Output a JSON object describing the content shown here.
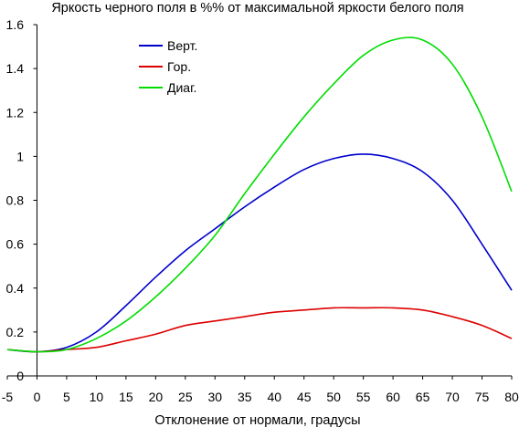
{
  "chart_data": {
    "type": "line",
    "title": "Яркость черного поля в %% от максимальной яркости белого поля",
    "xlabel": "Отклонение от нормали, градусы",
    "ylabel": "",
    "xlim": [
      -5,
      80
    ],
    "ylim": [
      0,
      1.6
    ],
    "xticks": [
      "-5",
      "0",
      "5",
      "10",
      "15",
      "20",
      "25",
      "30",
      "35",
      "40",
      "45",
      "50",
      "55",
      "60",
      "65",
      "70",
      "75",
      "80"
    ],
    "yticks": [
      "0",
      "0.2",
      "0.4",
      "0.6",
      "0.8",
      "1",
      "1.2",
      "1.4",
      "1.6"
    ],
    "grid": false,
    "legend_position": "top-left",
    "series": [
      {
        "name": "Верт.",
        "color": "#0000cc",
        "x": [
          -5,
          0,
          5,
          10,
          15,
          20,
          25,
          30,
          35,
          40,
          45,
          50,
          55,
          60,
          65,
          70,
          75,
          80
        ],
        "y": [
          0.12,
          0.11,
          0.13,
          0.2,
          0.32,
          0.45,
          0.57,
          0.67,
          0.77,
          0.86,
          0.94,
          0.99,
          1.01,
          0.99,
          0.93,
          0.8,
          0.6,
          0.39
        ]
      },
      {
        "name": "Гор.",
        "color": "#dd0000",
        "x": [
          -5,
          0,
          5,
          10,
          15,
          20,
          25,
          30,
          35,
          40,
          45,
          50,
          55,
          60,
          65,
          70,
          75,
          80
        ],
        "y": [
          0.12,
          0.11,
          0.12,
          0.13,
          0.16,
          0.19,
          0.23,
          0.25,
          0.27,
          0.29,
          0.3,
          0.31,
          0.31,
          0.31,
          0.3,
          0.27,
          0.23,
          0.17
        ]
      },
      {
        "name": "Диаг.",
        "color": "#00dd00",
        "x": [
          -5,
          0,
          5,
          10,
          15,
          20,
          25,
          30,
          35,
          40,
          45,
          50,
          55,
          60,
          65,
          70,
          75,
          80
        ],
        "y": [
          0.12,
          0.11,
          0.12,
          0.17,
          0.25,
          0.36,
          0.49,
          0.64,
          0.83,
          1.01,
          1.18,
          1.33,
          1.46,
          1.53,
          1.53,
          1.42,
          1.18,
          0.84
        ]
      }
    ]
  }
}
